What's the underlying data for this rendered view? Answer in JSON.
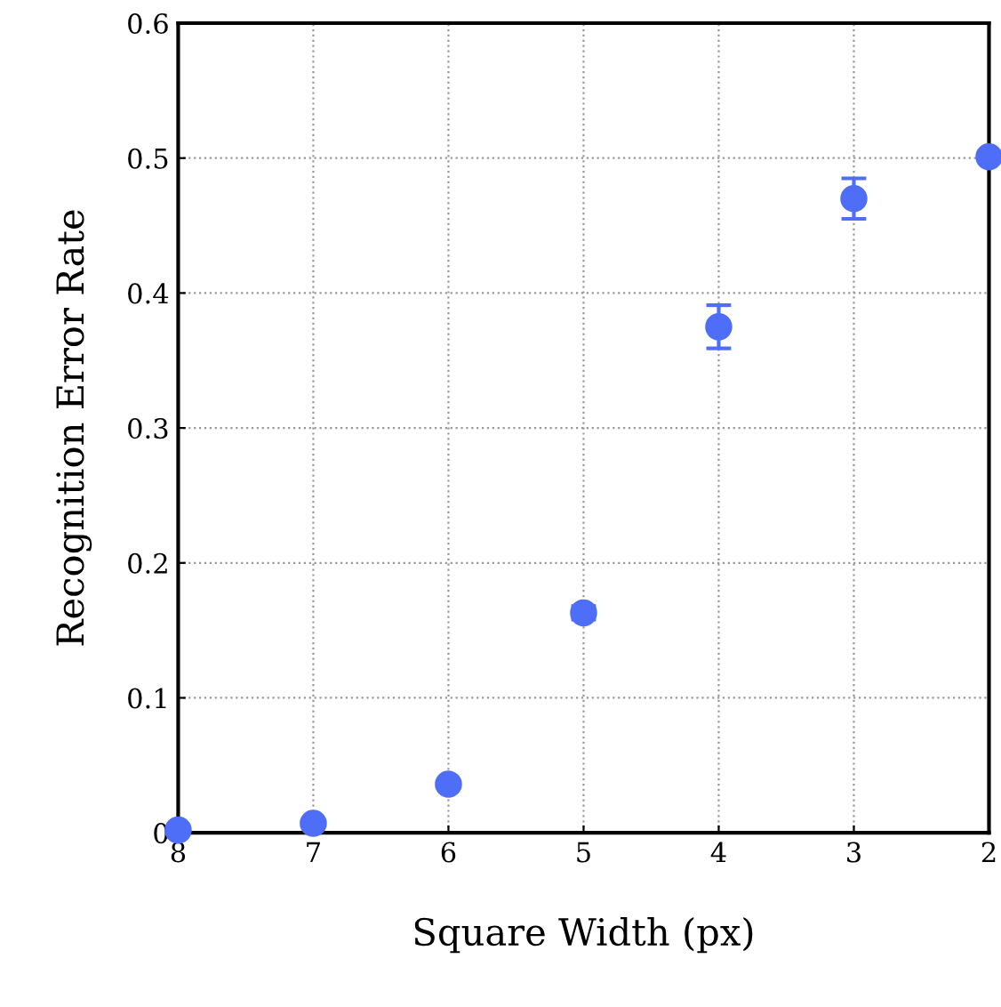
{
  "chart_data": {
    "type": "scatter",
    "xlabel": "Square Width (px)",
    "ylabel": "Recognition Error Rate",
    "x": [
      8,
      7,
      6,
      5,
      4,
      3,
      2
    ],
    "series": [
      {
        "color": "#4f6ef7",
        "values": [
          0.002,
          0.007,
          0.036,
          0.163,
          0.375,
          0.47,
          0.501
        ],
        "errors": [
          null,
          null,
          null,
          0.005,
          0.016,
          0.015,
          null
        ]
      }
    ],
    "xlim": [
      8,
      2
    ],
    "xticks": [
      8,
      7,
      6,
      5,
      4,
      3,
      2
    ],
    "ylim": [
      0,
      0.6
    ],
    "yticks": [
      0,
      0.1,
      0.2,
      0.3,
      0.4,
      0.5,
      0.6
    ],
    "grid": true,
    "marker": "circle"
  }
}
